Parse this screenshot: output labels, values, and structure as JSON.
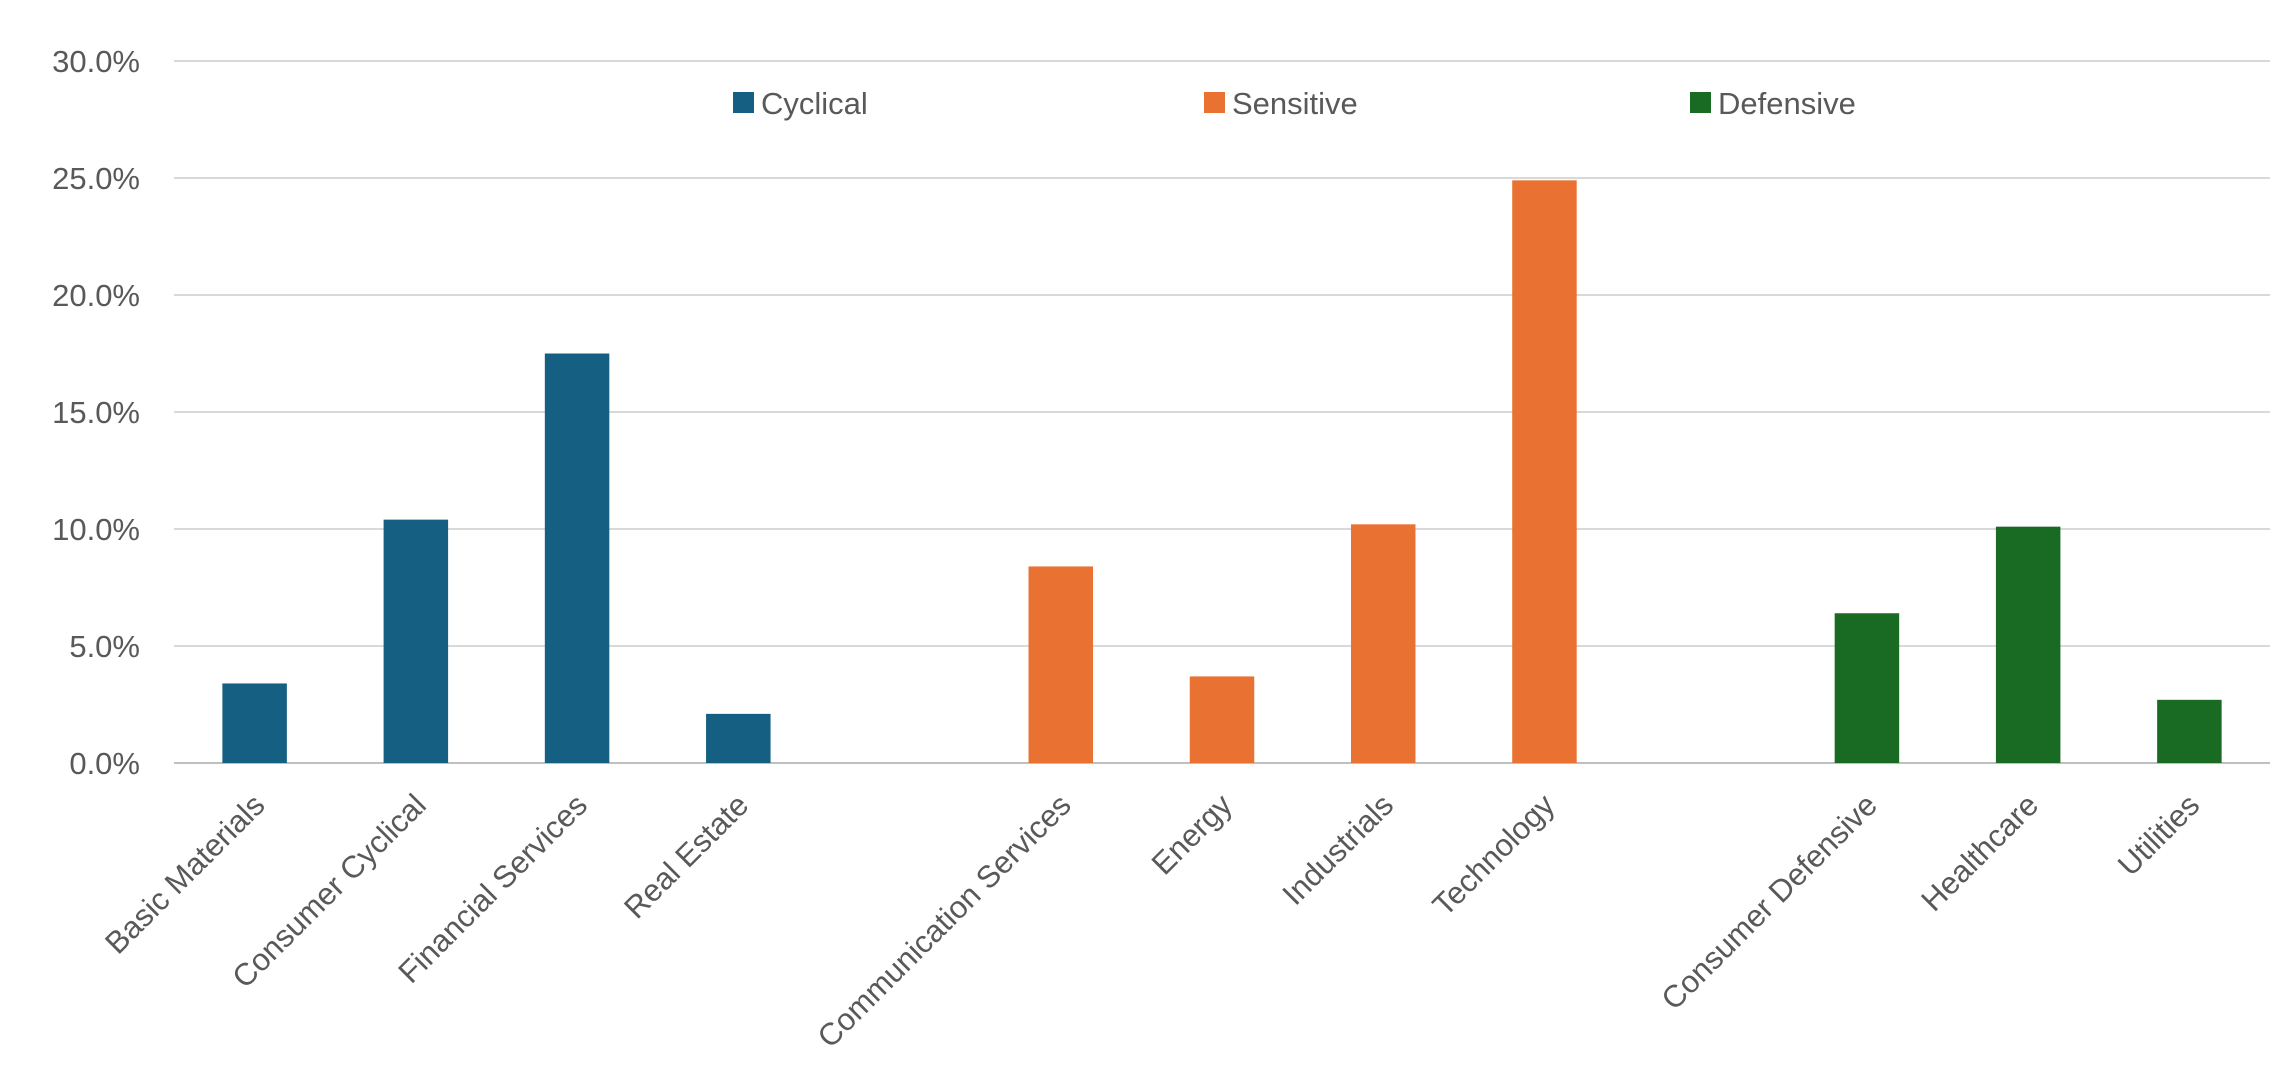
{
  "chart_data": {
    "type": "bar",
    "title": "",
    "xlabel": "",
    "ylabel": "",
    "ylim": [
      0,
      0.3
    ],
    "yticks": [
      0,
      0.05,
      0.1,
      0.15,
      0.2,
      0.25,
      0.3
    ],
    "ytick_labels": [
      "0.0%",
      "5.0%",
      "10.0%",
      "15.0%",
      "20.0%",
      "25.0%",
      "30.0%"
    ],
    "grid": true,
    "legend_position": "top",
    "categories": [
      "Basic Materials",
      "Consumer Cyclical",
      "Financial Services",
      "Real Estate",
      "",
      "Communication Services",
      "Energy",
      "Industrials",
      "Technology",
      "",
      "Consumer Defensive",
      "Healthcare",
      "Utilities"
    ],
    "series": [
      {
        "name": "Cyclical",
        "color": "#156082",
        "values": [
          0.034,
          0.104,
          0.175,
          0.021,
          null,
          null,
          null,
          null,
          null,
          null,
          null,
          null,
          null
        ]
      },
      {
        "name": "Sensitive",
        "color": "#E97132",
        "values": [
          null,
          null,
          null,
          null,
          null,
          0.084,
          0.037,
          0.102,
          0.249,
          null,
          null,
          null,
          null
        ]
      },
      {
        "name": "Defensive",
        "color": "#196B24",
        "values": [
          null,
          null,
          null,
          null,
          null,
          null,
          null,
          null,
          null,
          null,
          0.064,
          0.101,
          0.027
        ]
      }
    ]
  }
}
